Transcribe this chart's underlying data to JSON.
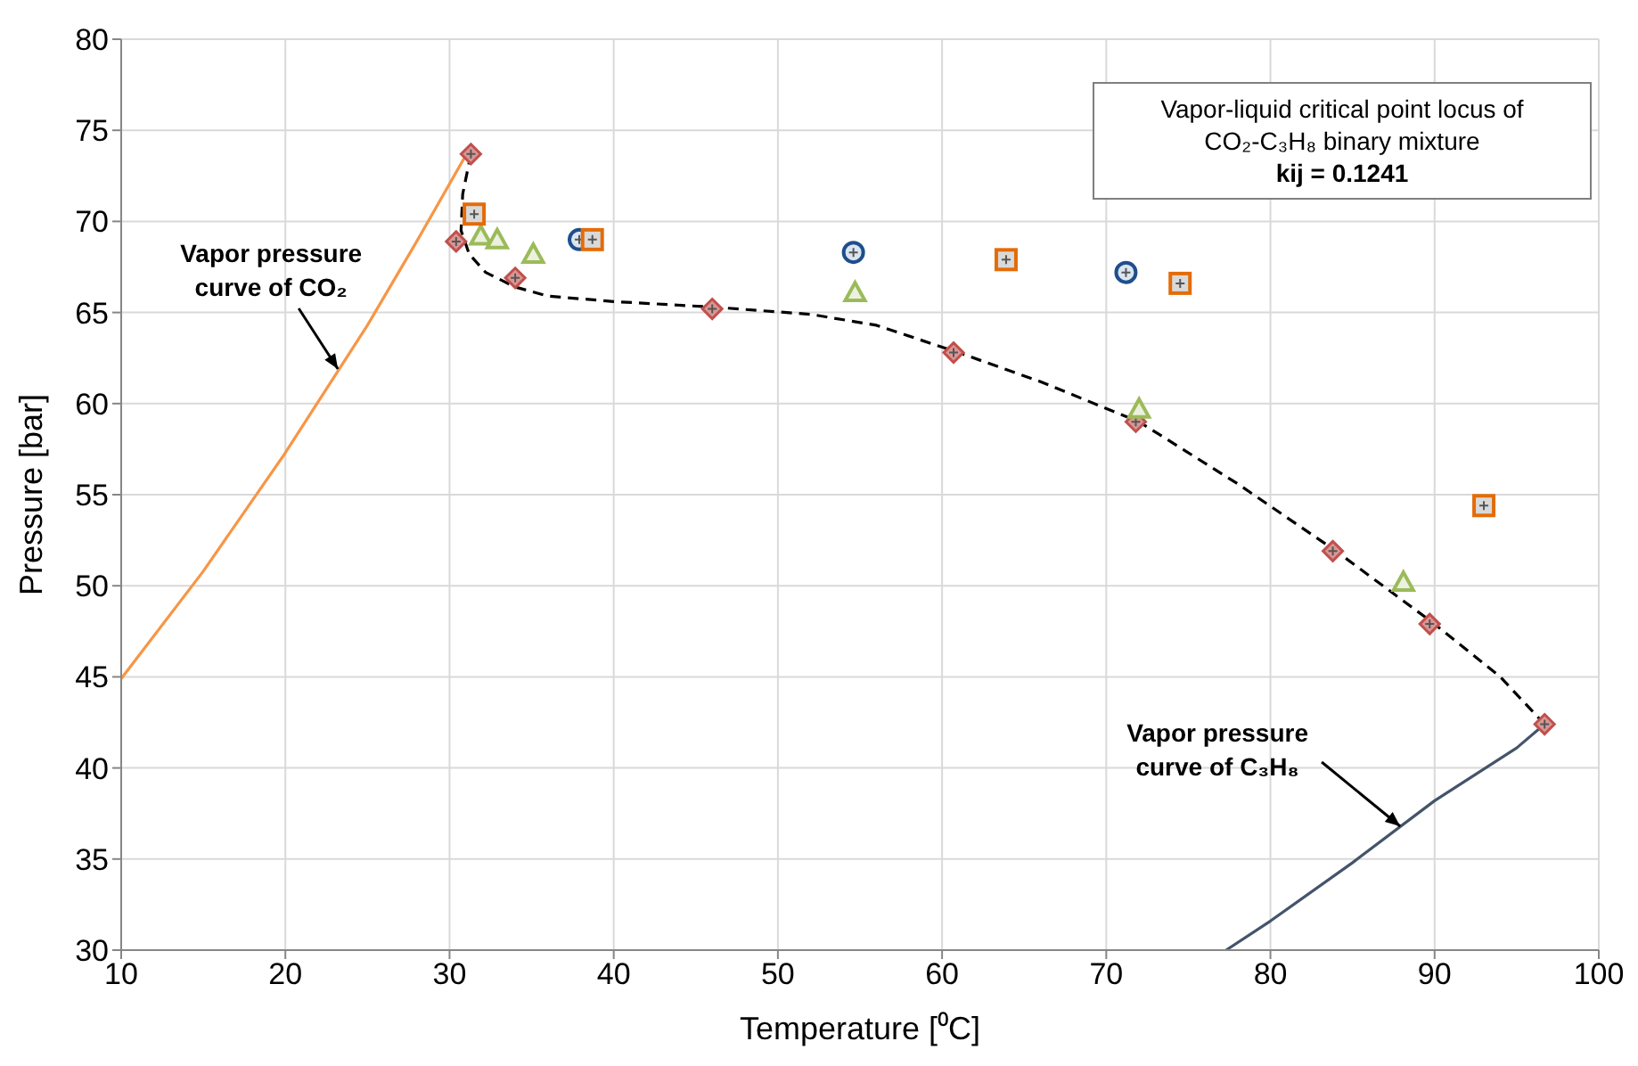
{
  "chart_data": {
    "type": "scatter",
    "xlabel": "Temperature [⁰C]",
    "ylabel": "Pressure [bar]",
    "xlim": [
      10,
      100
    ],
    "xticks": [
      10,
      20,
      30,
      40,
      50,
      60,
      70,
      80,
      90,
      100
    ],
    "ylim": [
      30,
      80
    ],
    "yticks": [
      30,
      35,
      40,
      45,
      50,
      55,
      60,
      65,
      70,
      75,
      80
    ],
    "grid": true,
    "legend": false,
    "series": [
      {
        "type": "line",
        "color": "#f79646",
        "line_style": "solid",
        "marker": "none",
        "x": [
          10,
          15,
          20,
          25,
          28,
          31.1
        ],
        "values": [
          44.9,
          50.8,
          57.3,
          64.3,
          68.9,
          73.8
        ]
      },
      {
        "type": "line",
        "color": "#44546a",
        "line_style": "solid",
        "marker": "none",
        "x": [
          77.3,
          80,
          85,
          90,
          95,
          96.7
        ],
        "values": [
          30,
          31.6,
          34.8,
          38.2,
          41.1,
          42.4
        ]
      },
      {
        "type": "line",
        "color": "#000000",
        "line_style": "dashed",
        "marker": "none",
        "x": [
          31.3,
          30.8,
          30.7,
          31.2,
          32.2,
          34,
          36,
          40,
          46,
          52,
          56,
          61,
          66,
          72,
          78,
          84,
          90,
          94,
          96.7
        ],
        "values": [
          73.7,
          71.5,
          69.5,
          68.2,
          67.2,
          66.4,
          65.9,
          65.6,
          65.3,
          64.9,
          64.3,
          62.8,
          61.2,
          59.0,
          55.6,
          51.9,
          47.9,
          45.0,
          42.4
        ]
      },
      {
        "color": "#c0504d",
        "marker": "diamond",
        "x": [
          31.3,
          30.4,
          34.0,
          46.0,
          60.7,
          71.8,
          83.8,
          89.7,
          96.7
        ],
        "values": [
          73.7,
          68.9,
          66.9,
          65.2,
          62.8,
          59.0,
          51.9,
          47.9,
          42.4
        ]
      },
      {
        "color": "#9bbb59",
        "marker": "triangle",
        "x": [
          31.9,
          32.9,
          35.1,
          54.7,
          72.0,
          88.1
        ],
        "values": [
          69.2,
          69.0,
          68.2,
          66.1,
          59.7,
          50.2
        ]
      },
      {
        "color": "#1f4e8c",
        "marker": "circle",
        "x": [
          37.9,
          54.6,
          71.2
        ],
        "values": [
          69.0,
          68.3,
          67.2
        ]
      },
      {
        "color": "#e36c09",
        "marker": "square",
        "x": [
          31.5,
          38.7,
          63.9,
          74.5,
          93.0
        ],
        "values": [
          70.4,
          69.0,
          67.9,
          66.6,
          54.4
        ]
      }
    ],
    "annotations": [
      {
        "text": "Vapor pressure curve of CO₂",
        "x": 23.2,
        "y": 61.9
      },
      {
        "text": "Vapor pressure curve of C₃H₈",
        "x": 87.9,
        "y": 36.8
      },
      "Vapor-liquid critical point locus of",
      "CO₂-C₃H₈ binary mixture",
      "kij =  0.1241"
    ]
  }
}
